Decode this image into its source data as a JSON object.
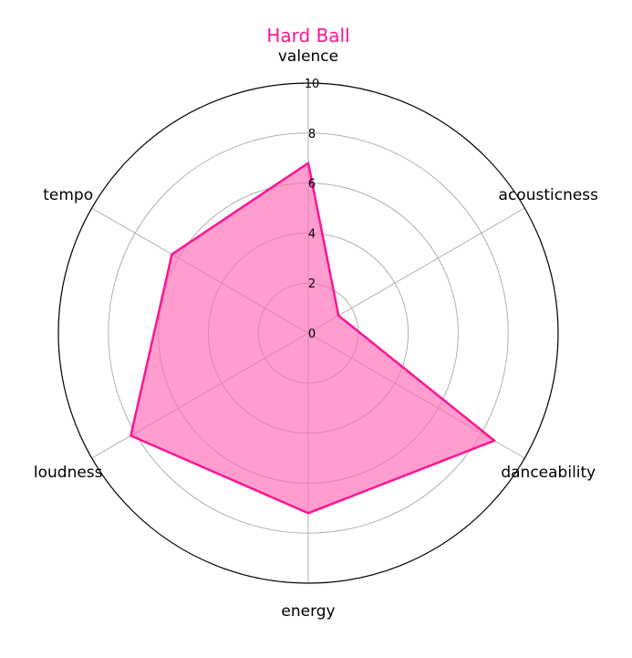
{
  "chart_data": {
    "type": "radar",
    "title": "Hard Ball",
    "title_color": "#ff1493",
    "axes": [
      "valence",
      "acousticness",
      "danceability",
      "energy",
      "loudness",
      "tempo"
    ],
    "series": [
      {
        "values": [
          6.8,
          1.4,
          8.6,
          7.2,
          8.2,
          6.3
        ],
        "line_color": "#ff1493",
        "fill_color": "#ff69b4",
        "fill_opacity": 0.65
      }
    ],
    "rlim": [
      0,
      10
    ],
    "radial_ticks": [
      0,
      2,
      4,
      6,
      8,
      10
    ],
    "grid": true,
    "grid_color": "#b0b0b0"
  }
}
